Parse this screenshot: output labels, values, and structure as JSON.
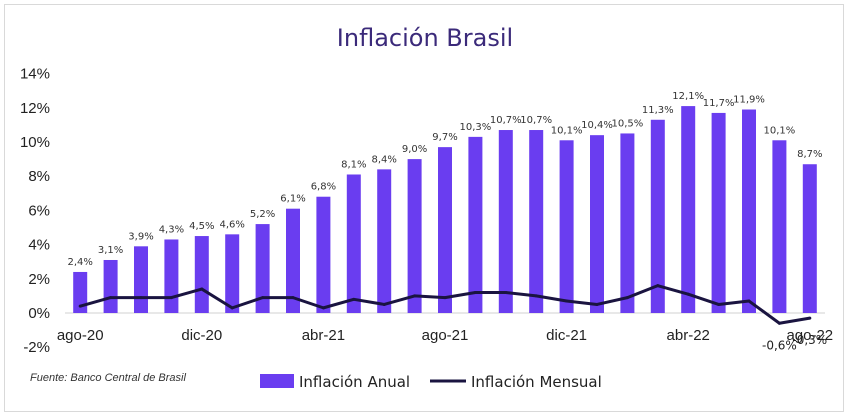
{
  "chart_data": {
    "type": "bar",
    "title": "Inflación Brasil",
    "source": "Fuente: Banco Central de Brasil",
    "y_ticks": [
      "14%",
      "12%",
      "10%",
      "8%",
      "6%",
      "4%",
      "2%",
      "0%",
      "-2%"
    ],
    "ylim": [
      -2,
      14
    ],
    "x_tick_labels": [
      "ago-20",
      "dic-20",
      "abr-21",
      "ago-21",
      "dic-21",
      "abr-22",
      "ago-22"
    ],
    "categories": [
      "ago-20",
      "sep-20",
      "oct-20",
      "nov-20",
      "dic-20",
      "ene-21",
      "feb-21",
      "mar-21",
      "abr-21",
      "may-21",
      "jun-21",
      "jul-21",
      "ago-21",
      "sep-21",
      "oct-21",
      "nov-21",
      "dic-21",
      "ene-22",
      "feb-22",
      "mar-22",
      "abr-22",
      "may-22",
      "jun-22",
      "jul-22",
      "ago-22"
    ],
    "series": [
      {
        "name": "Inflación Anual",
        "type": "bar",
        "color": "#6a3df0",
        "values": [
          2.4,
          3.1,
          3.9,
          4.3,
          4.5,
          4.6,
          5.2,
          6.1,
          6.8,
          8.1,
          8.4,
          9.0,
          9.7,
          10.3,
          10.7,
          10.7,
          10.1,
          10.4,
          10.5,
          11.3,
          12.1,
          11.7,
          11.9,
          10.1,
          8.7
        ],
        "labels": [
          "2,4%",
          "3,1%",
          "3,9%",
          "4,3%",
          "4,5%",
          "4,6%",
          "5,2%",
          "6,1%",
          "6,8%",
          "8,1%",
          "8,4%",
          "9,0%",
          "9,7%",
          "10,3%",
          "10,7%",
          "10,7%",
          "10,1%",
          "10,4%",
          "10,5%",
          "11,3%",
          "12,1%",
          "11,7%",
          "11,9%",
          "10,1%",
          "8,7%"
        ]
      },
      {
        "name": "Inflación Mensual",
        "type": "line",
        "color": "#1a1440",
        "values": [
          0.4,
          0.9,
          0.9,
          0.9,
          1.4,
          0.3,
          0.9,
          0.9,
          0.3,
          0.8,
          0.5,
          1.0,
          0.9,
          1.2,
          1.2,
          1.0,
          0.7,
          0.5,
          0.9,
          1.6,
          1.1,
          0.5,
          0.7,
          -0.6,
          -0.3
        ],
        "labels": {
          "23": "-0,6%",
          "24": "-0,3%"
        }
      }
    ],
    "legend_position": "bottom"
  }
}
